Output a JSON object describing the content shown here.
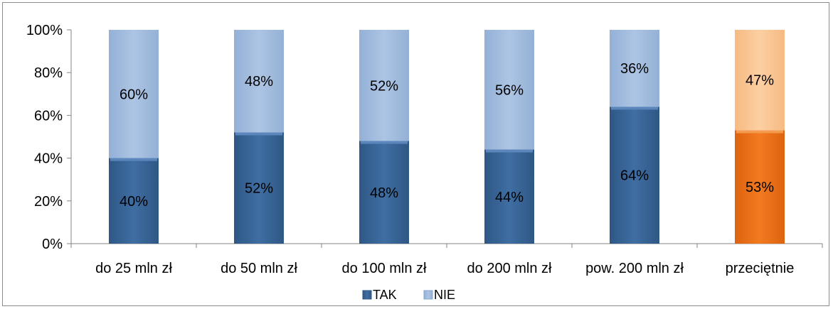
{
  "chart_data": {
    "type": "bar",
    "stacked": true,
    "percent": true,
    "categories": [
      "do 25 mln zł",
      "do 50 mln zł",
      "do 100 mln zł",
      "do 200 mln zł",
      "pow. 200 mln zł",
      "przeciętnie"
    ],
    "series": [
      {
        "name": "TAK",
        "values": [
          40,
          52,
          48,
          44,
          64,
          53
        ],
        "color": "#3a6799",
        "highlight_color": "#ee7218"
      },
      {
        "name": "NIE",
        "values": [
          60,
          48,
          52,
          56,
          36,
          47
        ],
        "color": "#a6bfe0",
        "highlight_color": "#fac898"
      }
    ],
    "data_labels": {
      "TAK": [
        "40%",
        "52%",
        "48%",
        "44%",
        "64%",
        "53%"
      ],
      "NIE": [
        "60%",
        "48%",
        "52%",
        "56%",
        "36%",
        "47%"
      ]
    },
    "highlighted_category": "przeciętnie",
    "y_ticks": [
      "0%",
      "20%",
      "40%",
      "60%",
      "80%",
      "100%"
    ],
    "ylim": [
      0,
      100
    ],
    "grid": false,
    "legend_position": "bottom",
    "title": "",
    "xlabel": "",
    "ylabel": ""
  }
}
